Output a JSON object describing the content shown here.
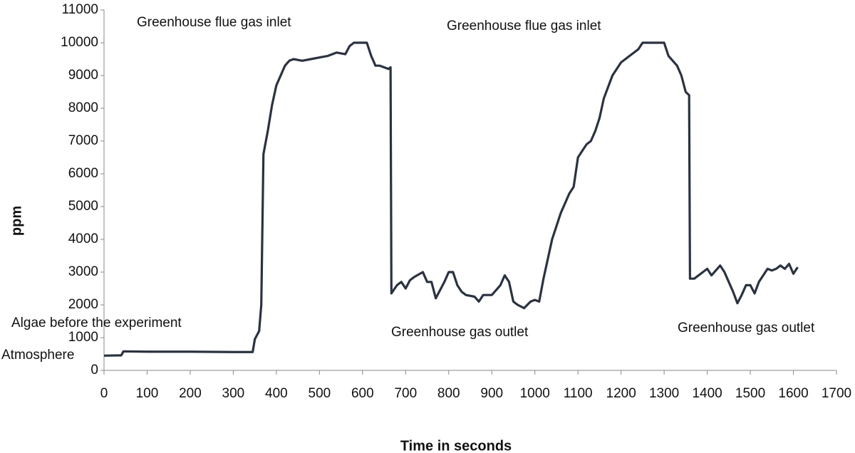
{
  "chart_data": {
    "type": "line",
    "x_label": "Time in seconds",
    "y_label": "ppm",
    "annotations": [
      "Greenhouse flue gas inlet",
      "Greenhouse flue gas inlet",
      "Algae before the experiment",
      "Atmosphere",
      "Greenhouse gas outlet",
      "Greenhouse gas outlet"
    ],
    "xlim": [
      0,
      1700
    ],
    "xticks": [
      0,
      100,
      200,
      300,
      400,
      500,
      600,
      700,
      800,
      900,
      1000,
      1100,
      1200,
      1300,
      1400,
      1500,
      1600,
      1700
    ],
    "ylim": [
      0,
      11000
    ],
    "yticks": [
      0,
      1000,
      2000,
      3000,
      4000,
      5000,
      6000,
      7000,
      8000,
      9000,
      10000,
      11000
    ],
    "grid": false,
    "series": [
      {
        "color": "#2b3240",
        "x": [
          0,
          40,
          45,
          100,
          200,
          300,
          345,
          350,
          360,
          365,
          370,
          380,
          390,
          400,
          410,
          420,
          430,
          440,
          460,
          480,
          500,
          520,
          540,
          560,
          570,
          580,
          600,
          610,
          620,
          630,
          640,
          660,
          665,
          667,
          680,
          690,
          700,
          710,
          720,
          740,
          750,
          760,
          770,
          790,
          800,
          810,
          820,
          830,
          840,
          860,
          870,
          880,
          900,
          920,
          930,
          940,
          950,
          960,
          975,
          990,
          1000,
          1010,
          1020,
          1040,
          1060,
          1080,
          1090,
          1100,
          1110,
          1120,
          1130,
          1140,
          1150,
          1160,
          1180,
          1200,
          1220,
          1240,
          1250,
          1300,
          1310,
          1330,
          1340,
          1350,
          1358,
          1360,
          1370,
          1390,
          1400,
          1410,
          1420,
          1430,
          1440,
          1450,
          1460,
          1470,
          1480,
          1490,
          1500,
          1510,
          1520,
          1540,
          1550,
          1560,
          1570,
          1580,
          1590,
          1600,
          1610
        ],
        "values": [
          450,
          460,
          580,
          570,
          570,
          560,
          560,
          950,
          1200,
          2000,
          6600,
          7300,
          8100,
          8700,
          9000,
          9300,
          9450,
          9500,
          9450,
          9500,
          9550,
          9600,
          9700,
          9650,
          9900,
          10000,
          10000,
          10000,
          9600,
          9300,
          9300,
          9200,
          9250,
          2350,
          2600,
          2700,
          2500,
          2750,
          2850,
          3000,
          2700,
          2700,
          2200,
          2700,
          3000,
          3000,
          2600,
          2400,
          2300,
          2250,
          2100,
          2300,
          2300,
          2600,
          2900,
          2700,
          2100,
          2000,
          1900,
          2100,
          2150,
          2100,
          2800,
          4000,
          4800,
          5400,
          5600,
          6500,
          6700,
          6900,
          7000,
          7300,
          7700,
          8300,
          9000,
          9400,
          9600,
          9800,
          10000,
          10000,
          9600,
          9300,
          9000,
          8500,
          8400,
          2800,
          2800,
          3000,
          3100,
          2900,
          3050,
          3200,
          3000,
          2700,
          2400,
          2050,
          2300,
          2600,
          2600,
          2350,
          2700,
          3100,
          3050,
          3100,
          3200,
          3100,
          3250,
          2950,
          3150
        ]
      }
    ]
  }
}
